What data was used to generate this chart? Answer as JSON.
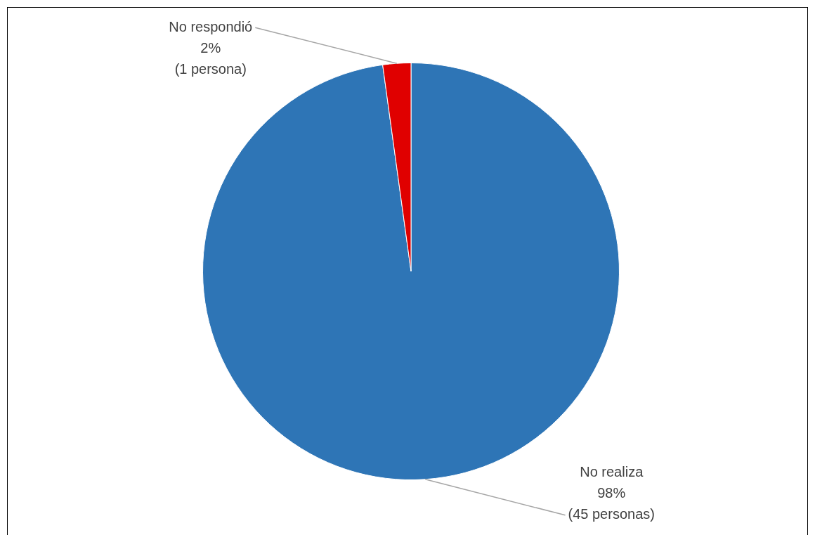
{
  "chart_data": {
    "type": "pie",
    "categories": [
      "No realiza",
      "No respondió"
    ],
    "values": [
      45,
      1
    ],
    "value_labels": [
      "98%\n(45 personas)",
      "2%\n(1 persona)"
    ],
    "colors": [
      "#2e75b6",
      "#e00000"
    ]
  }
}
